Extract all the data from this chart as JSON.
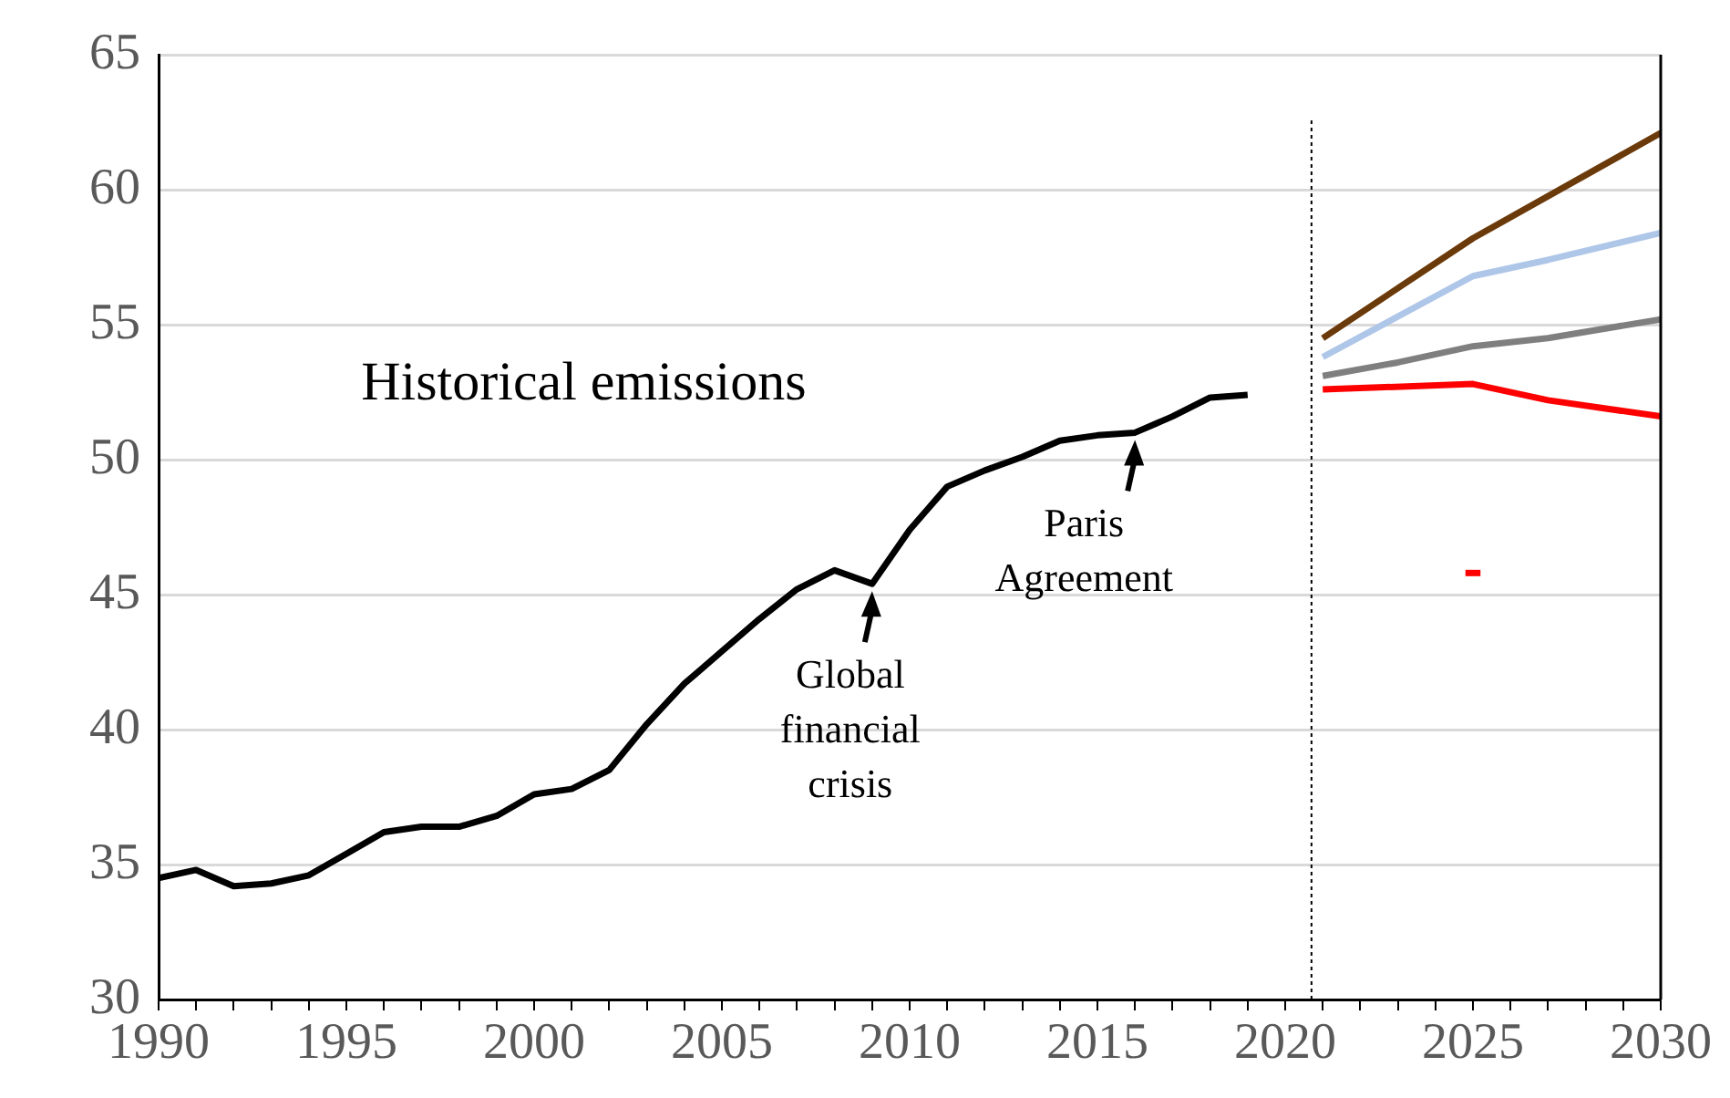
{
  "chart_data": {
    "type": "line",
    "xlim": [
      1990,
      2030
    ],
    "xticks": [
      1990,
      {
        "value": 1991,
        "label": null
      },
      {
        "value": 1992,
        "label": null
      },
      {
        "value": 1993,
        "label": null
      },
      {
        "value": 1994,
        "label": null
      },
      1995,
      {
        "value": 1996,
        "label": null
      },
      {
        "value": 1997,
        "label": null
      },
      {
        "value": 1998,
        "label": null
      },
      {
        "value": 1999,
        "label": null
      },
      2000,
      {
        "value": 2001,
        "label": null
      },
      {
        "value": 2002,
        "label": null
      },
      {
        "value": 2003,
        "label": null
      },
      {
        "value": 2004,
        "label": null
      },
      2005,
      {
        "value": 2006,
        "label": null
      },
      {
        "value": 2007,
        "label": null
      },
      {
        "value": 2008,
        "label": null
      },
      {
        "value": 2009,
        "label": null
      },
      2010,
      {
        "value": 2011,
        "label": null
      },
      {
        "value": 2012,
        "label": null
      },
      {
        "value": 2013,
        "label": null
      },
      {
        "value": 2014,
        "label": null
      },
      2015,
      {
        "value": 2016,
        "label": null
      },
      {
        "value": 2017,
        "label": null
      },
      {
        "value": 2018,
        "label": null
      },
      {
        "value": 2019,
        "label": null
      },
      2020,
      {
        "value": 2021,
        "label": null
      },
      {
        "value": 2022,
        "label": null
      },
      {
        "value": 2023,
        "label": null
      },
      {
        "value": 2024,
        "label": null
      },
      2025,
      {
        "value": 2026,
        "label": null
      },
      {
        "value": 2027,
        "label": null
      },
      {
        "value": 2028,
        "label": null
      },
      {
        "value": 2029,
        "label": null
      },
      2030
    ],
    "ylim": [
      30,
      65
    ],
    "yticks": [
      30,
      35,
      40,
      45,
      50,
      55,
      60,
      65
    ],
    "grid": "y",
    "legend": false,
    "marker": "none",
    "line_style": "solid",
    "series": [
      {
        "color": "#000000",
        "x": [
          1990,
          1991,
          1992,
          1993,
          1994,
          1995,
          1996,
          1997,
          1998,
          1999,
          2000,
          2001,
          2002,
          2003,
          2004,
          2005,
          2006,
          2007,
          2008,
          2009,
          2010,
          2011,
          2012,
          2013,
          2014,
          2015,
          2016,
          2017,
          2018,
          2019
        ],
        "values": [
          34.5,
          34.8,
          34.2,
          34.3,
          34.6,
          35.4,
          36.2,
          36.4,
          36.4,
          36.8,
          37.6,
          37.8,
          38.5,
          40.2,
          41.7,
          42.9,
          44.1,
          45.2,
          45.9,
          45.4,
          47.4,
          49.0,
          49.6,
          50.1,
          50.7,
          50.9,
          51.0,
          51.6,
          52.3,
          52.4
        ]
      },
      {
        "color": "#6b3a0a",
        "x": [
          2021,
          2025,
          2030
        ],
        "values": [
          54.5,
          58.2,
          62.1
        ]
      },
      {
        "color": "#aec6e8",
        "x": [
          2021,
          2025,
          2027,
          2030
        ],
        "values": [
          53.8,
          56.8,
          57.4,
          58.4
        ]
      },
      {
        "color": "#7f7f7f",
        "x": [
          2021,
          2023,
          2025,
          2027,
          2030
        ],
        "values": [
          53.1,
          53.6,
          54.2,
          54.5,
          55.2
        ]
      },
      {
        "color": "#ff0000",
        "x": [
          2021,
          2025,
          2027,
          2030
        ],
        "values": [
          52.6,
          52.8,
          52.2,
          51.6
        ]
      },
      {
        "color": "#ff0000",
        "x": [
          2024.8,
          2025.2
        ],
        "values": [
          45.8,
          45.8
        ]
      }
    ],
    "ref_lines": [
      {
        "axis": "x",
        "value": 2020.7,
        "color": "#000000",
        "line_style": "dotted"
      }
    ],
    "annotations": [
      "Historical emissions",
      {
        "text": "Global financial crisis",
        "x": 2009,
        "y": 45.4
      },
      {
        "text": "Paris Agreement",
        "x": 2016,
        "y": 51.0
      }
    ]
  }
}
